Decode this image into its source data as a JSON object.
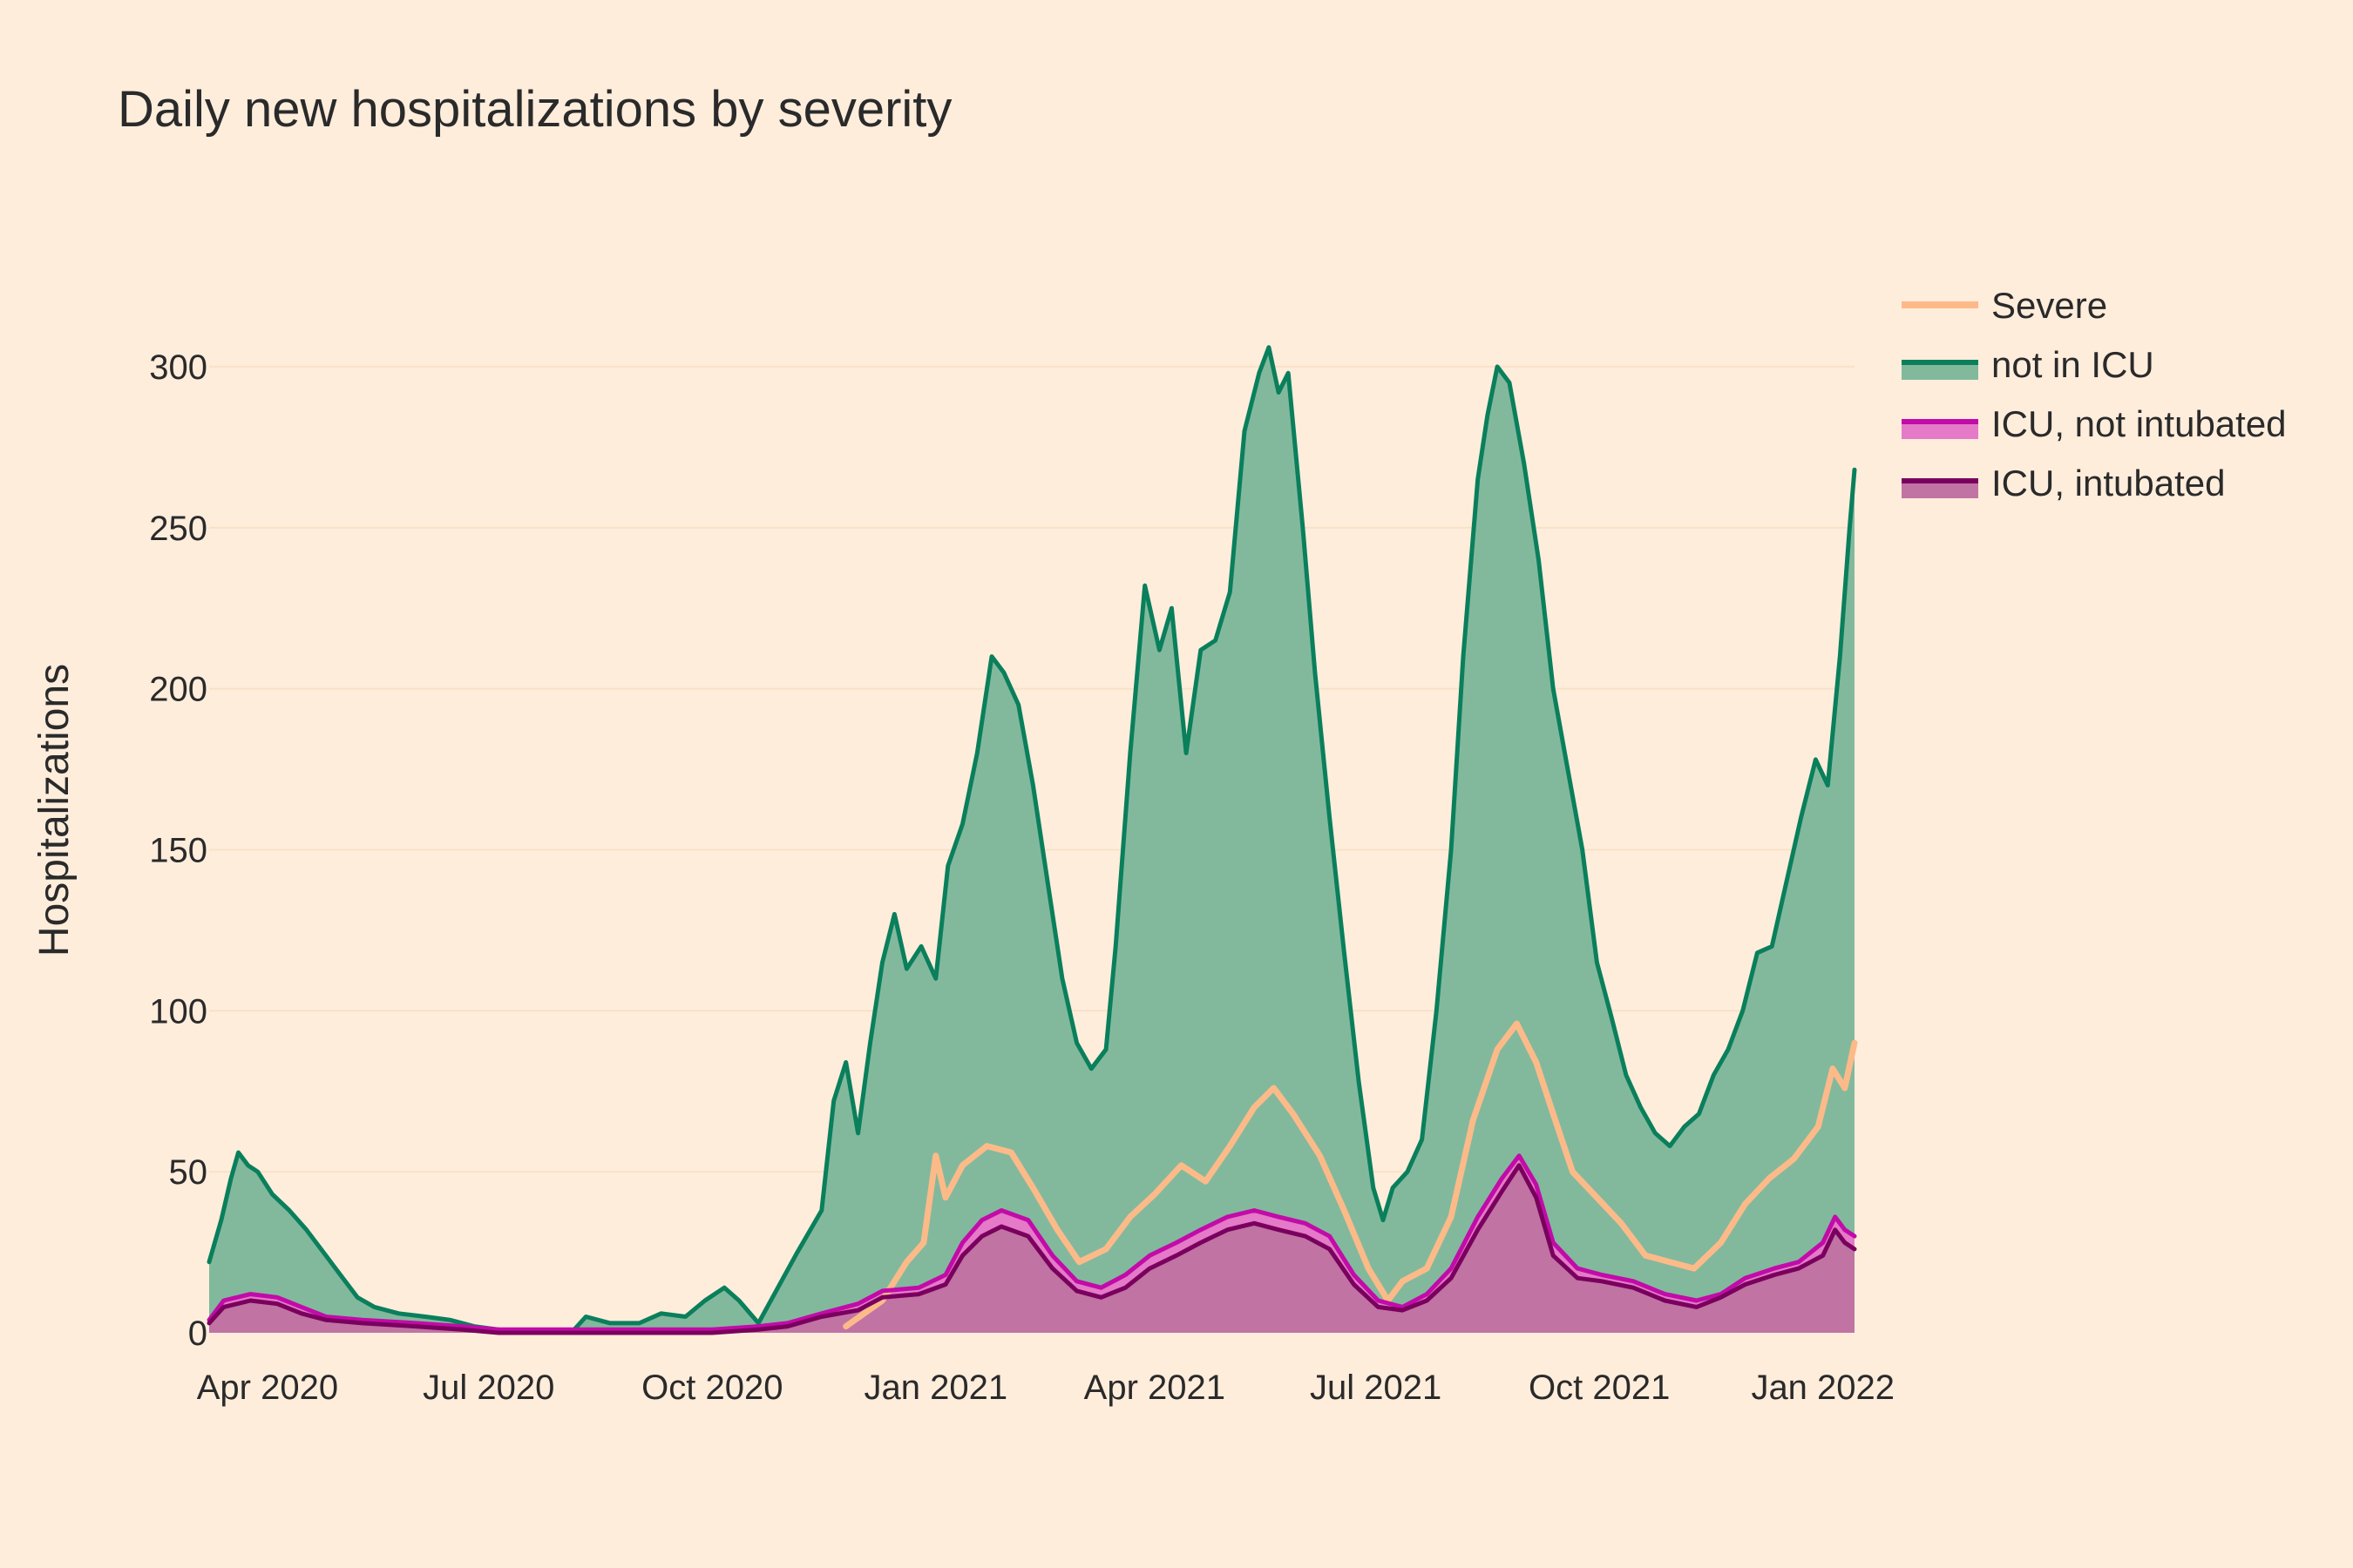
{
  "chart_data": {
    "type": "area",
    "title": "Daily new hospitalizations by severity",
    "xlabel": "",
    "ylabel": "Hospitalizations",
    "x_range": [
      "2020-03-08",
      "2022-01-14"
    ],
    "ylim": [
      0,
      330
    ],
    "y_ticks": [
      0,
      50,
      100,
      150,
      200,
      250,
      300
    ],
    "x_ticks": [
      {
        "date": "2020-04-01",
        "label": "Apr 2020"
      },
      {
        "date": "2020-07-01",
        "label": "Jul 2020"
      },
      {
        "date": "2020-10-01",
        "label": "Oct 2020"
      },
      {
        "date": "2021-01-01",
        "label": "Jan 2021"
      },
      {
        "date": "2021-04-01",
        "label": "Apr 2021"
      },
      {
        "date": "2021-07-01",
        "label": "Jul 2021"
      },
      {
        "date": "2021-10-01",
        "label": "Oct 2021"
      },
      {
        "date": "2022-01-01",
        "label": "Jan 2022"
      }
    ],
    "grid": true,
    "legend_position": "top-right",
    "colors": {
      "background": "#FFEDDC",
      "grid": "#F7E2C8",
      "severe": "#FDBA89",
      "not_in_icu_line": "#0A7F5C",
      "not_in_icu_fill": "#82B99D",
      "icu_not_intubated_line": "#C20BA8",
      "icu_not_intubated_fill": "#E47AC8",
      "icu_intubated_line": "#7A005E",
      "icu_intubated_fill": "#C173A4"
    },
    "series": [
      {
        "name": "Severe",
        "style": "line",
        "points": [
          [
            "2020-11-25",
            2
          ],
          [
            "2020-12-10",
            10
          ],
          [
            "2020-12-20",
            22
          ],
          [
            "2020-12-27",
            28
          ],
          [
            "2021-01-01",
            55
          ],
          [
            "2021-01-05",
            42
          ],
          [
            "2021-01-12",
            52
          ],
          [
            "2021-01-22",
            58
          ],
          [
            "2021-02-01",
            56
          ],
          [
            "2021-02-10",
            45
          ],
          [
            "2021-02-20",
            32
          ],
          [
            "2021-03-01",
            22
          ],
          [
            "2021-03-12",
            26
          ],
          [
            "2021-03-22",
            36
          ],
          [
            "2021-04-01",
            43
          ],
          [
            "2021-04-12",
            52
          ],
          [
            "2021-04-22",
            47
          ],
          [
            "2021-05-02",
            58
          ],
          [
            "2021-05-12",
            70
          ],
          [
            "2021-05-20",
            76
          ],
          [
            "2021-05-28",
            68
          ],
          [
            "2021-06-08",
            55
          ],
          [
            "2021-06-18",
            38
          ],
          [
            "2021-06-28",
            20
          ],
          [
            "2021-07-06",
            10
          ],
          [
            "2021-07-12",
            16
          ],
          [
            "2021-07-22",
            20
          ],
          [
            "2021-08-01",
            36
          ],
          [
            "2021-08-10",
            66
          ],
          [
            "2021-08-20",
            88
          ],
          [
            "2021-08-28",
            96
          ],
          [
            "2021-09-05",
            84
          ],
          [
            "2021-09-12",
            68
          ],
          [
            "2021-09-20",
            50
          ],
          [
            "2021-09-30",
            42
          ],
          [
            "2021-10-10",
            34
          ],
          [
            "2021-10-20",
            24
          ],
          [
            "2021-10-30",
            22
          ],
          [
            "2021-11-09",
            20
          ],
          [
            "2021-11-20",
            28
          ],
          [
            "2021-11-30",
            40
          ],
          [
            "2021-12-10",
            48
          ],
          [
            "2021-12-20",
            54
          ],
          [
            "2021-12-30",
            64
          ],
          [
            "2022-01-05",
            82
          ],
          [
            "2022-01-10",
            76
          ],
          [
            "2022-01-14",
            90
          ]
        ]
      },
      {
        "name": "not in ICU",
        "style": "area",
        "points": [
          [
            "2020-03-08",
            22
          ],
          [
            "2020-03-13",
            35
          ],
          [
            "2020-03-17",
            48
          ],
          [
            "2020-03-20",
            56
          ],
          [
            "2020-03-24",
            52
          ],
          [
            "2020-03-28",
            50
          ],
          [
            "2020-04-03",
            43
          ],
          [
            "2020-04-10",
            38
          ],
          [
            "2020-04-17",
            32
          ],
          [
            "2020-04-25",
            24
          ],
          [
            "2020-05-01",
            18
          ],
          [
            "2020-05-08",
            11
          ],
          [
            "2020-05-15",
            8
          ],
          [
            "2020-05-25",
            6
          ],
          [
            "2020-06-05",
            5
          ],
          [
            "2020-06-15",
            4
          ],
          [
            "2020-06-25",
            2
          ],
          [
            "2020-07-05",
            1
          ],
          [
            "2020-07-15",
            0
          ],
          [
            "2020-08-04",
            0
          ],
          [
            "2020-08-10",
            5
          ],
          [
            "2020-08-20",
            3
          ],
          [
            "2020-09-01",
            3
          ],
          [
            "2020-09-10",
            6
          ],
          [
            "2020-09-20",
            5
          ],
          [
            "2020-09-28",
            10
          ],
          [
            "2020-10-06",
            14
          ],
          [
            "2020-10-12",
            10
          ],
          [
            "2020-10-20",
            3
          ],
          [
            "2020-10-28",
            14
          ],
          [
            "2020-11-05",
            25
          ],
          [
            "2020-11-15",
            38
          ],
          [
            "2020-11-20",
            72
          ],
          [
            "2020-11-25",
            84
          ],
          [
            "2020-11-30",
            62
          ],
          [
            "2020-12-05",
            90
          ],
          [
            "2020-12-10",
            115
          ],
          [
            "2020-12-15",
            130
          ],
          [
            "2020-12-20",
            113
          ],
          [
            "2020-12-26",
            120
          ],
          [
            "2021-01-01",
            110
          ],
          [
            "2021-01-06",
            145
          ],
          [
            "2021-01-12",
            158
          ],
          [
            "2021-01-18",
            180
          ],
          [
            "2021-01-24",
            210
          ],
          [
            "2021-01-29",
            205
          ],
          [
            "2021-02-04",
            195
          ],
          [
            "2021-02-10",
            170
          ],
          [
            "2021-02-16",
            140
          ],
          [
            "2021-02-22",
            110
          ],
          [
            "2021-02-28",
            90
          ],
          [
            "2021-03-06",
            82
          ],
          [
            "2021-03-12",
            88
          ],
          [
            "2021-03-16",
            120
          ],
          [
            "2021-03-22",
            180
          ],
          [
            "2021-03-28",
            232
          ],
          [
            "2021-04-03",
            212
          ],
          [
            "2021-04-08",
            225
          ],
          [
            "2021-04-14",
            180
          ],
          [
            "2021-04-20",
            212
          ],
          [
            "2021-04-26",
            215
          ],
          [
            "2021-05-02",
            230
          ],
          [
            "2021-05-08",
            280
          ],
          [
            "2021-05-14",
            298
          ],
          [
            "2021-05-18",
            306
          ],
          [
            "2021-05-22",
            292
          ],
          [
            "2021-05-26",
            298
          ],
          [
            "2021-06-01",
            250
          ],
          [
            "2021-06-06",
            205
          ],
          [
            "2021-06-12",
            160
          ],
          [
            "2021-06-18",
            118
          ],
          [
            "2021-06-24",
            78
          ],
          [
            "2021-06-30",
            45
          ],
          [
            "2021-07-04",
            35
          ],
          [
            "2021-07-08",
            45
          ],
          [
            "2021-07-14",
            50
          ],
          [
            "2021-07-20",
            60
          ],
          [
            "2021-07-26",
            100
          ],
          [
            "2021-08-01",
            150
          ],
          [
            "2021-08-06",
            210
          ],
          [
            "2021-08-12",
            265
          ],
          [
            "2021-08-16",
            285
          ],
          [
            "2021-08-20",
            300
          ],
          [
            "2021-08-25",
            295
          ],
          [
            "2021-08-31",
            270
          ],
          [
            "2021-09-06",
            240
          ],
          [
            "2021-09-12",
            200
          ],
          [
            "2021-09-18",
            175
          ],
          [
            "2021-09-24",
            150
          ],
          [
            "2021-09-30",
            115
          ],
          [
            "2021-10-06",
            98
          ],
          [
            "2021-10-12",
            80
          ],
          [
            "2021-10-18",
            70
          ],
          [
            "2021-10-24",
            62
          ],
          [
            "2021-10-30",
            58
          ],
          [
            "2021-11-05",
            64
          ],
          [
            "2021-11-11",
            68
          ],
          [
            "2021-11-17",
            80
          ],
          [
            "2021-11-23",
            88
          ],
          [
            "2021-11-29",
            100
          ],
          [
            "2021-12-05",
            118
          ],
          [
            "2021-12-11",
            120
          ],
          [
            "2021-12-17",
            140
          ],
          [
            "2021-12-23",
            160
          ],
          [
            "2021-12-29",
            178
          ],
          [
            "2022-01-03",
            170
          ],
          [
            "2022-01-08",
            210
          ],
          [
            "2022-01-12",
            250
          ],
          [
            "2022-01-14",
            268
          ]
        ]
      },
      {
        "name": "ICU, not intubated",
        "style": "area",
        "points": [
          [
            "2020-03-08",
            4
          ],
          [
            "2020-03-14",
            10
          ],
          [
            "2020-03-25",
            12
          ],
          [
            "2020-04-05",
            11
          ],
          [
            "2020-04-15",
            8
          ],
          [
            "2020-04-25",
            5
          ],
          [
            "2020-05-10",
            4
          ],
          [
            "2020-06-01",
            3
          ],
          [
            "2020-06-20",
            2
          ],
          [
            "2020-07-05",
            1
          ],
          [
            "2020-08-01",
            1
          ],
          [
            "2020-09-01",
            1
          ],
          [
            "2020-10-01",
            1
          ],
          [
            "2020-10-20",
            2
          ],
          [
            "2020-11-01",
            3
          ],
          [
            "2020-11-15",
            6
          ],
          [
            "2020-11-30",
            9
          ],
          [
            "2020-12-10",
            13
          ],
          [
            "2020-12-25",
            14
          ],
          [
            "2021-01-05",
            18
          ],
          [
            "2021-01-12",
            28
          ],
          [
            "2021-01-20",
            35
          ],
          [
            "2021-01-28",
            38
          ],
          [
            "2021-02-08",
            35
          ],
          [
            "2021-02-18",
            24
          ],
          [
            "2021-02-28",
            16
          ],
          [
            "2021-03-10",
            14
          ],
          [
            "2021-03-20",
            18
          ],
          [
            "2021-03-30",
            24
          ],
          [
            "2021-04-10",
            28
          ],
          [
            "2021-04-20",
            32
          ],
          [
            "2021-05-01",
            36
          ],
          [
            "2021-05-12",
            38
          ],
          [
            "2021-05-22",
            36
          ],
          [
            "2021-06-02",
            34
          ],
          [
            "2021-06-12",
            30
          ],
          [
            "2021-06-22",
            18
          ],
          [
            "2021-07-02",
            10
          ],
          [
            "2021-07-12",
            8
          ],
          [
            "2021-07-22",
            12
          ],
          [
            "2021-08-01",
            20
          ],
          [
            "2021-08-12",
            36
          ],
          [
            "2021-08-22",
            48
          ],
          [
            "2021-08-29",
            55
          ],
          [
            "2021-09-05",
            46
          ],
          [
            "2021-09-12",
            28
          ],
          [
            "2021-09-22",
            20
          ],
          [
            "2021-10-02",
            18
          ],
          [
            "2021-10-15",
            16
          ],
          [
            "2021-10-28",
            12
          ],
          [
            "2021-11-10",
            10
          ],
          [
            "2021-11-20",
            12
          ],
          [
            "2021-11-30",
            17
          ],
          [
            "2021-12-12",
            20
          ],
          [
            "2021-12-22",
            22
          ],
          [
            "2022-01-01",
            28
          ],
          [
            "2022-01-06",
            36
          ],
          [
            "2022-01-10",
            32
          ],
          [
            "2022-01-14",
            30
          ]
        ]
      },
      {
        "name": "ICU, intubated",
        "style": "area",
        "points": [
          [
            "2020-03-08",
            3
          ],
          [
            "2020-03-14",
            8
          ],
          [
            "2020-03-25",
            10
          ],
          [
            "2020-04-05",
            9
          ],
          [
            "2020-04-15",
            6
          ],
          [
            "2020-04-25",
            4
          ],
          [
            "2020-05-10",
            3
          ],
          [
            "2020-06-01",
            2
          ],
          [
            "2020-06-20",
            1
          ],
          [
            "2020-07-05",
            0
          ],
          [
            "2020-08-01",
            0
          ],
          [
            "2020-09-01",
            0
          ],
          [
            "2020-10-01",
            0
          ],
          [
            "2020-10-20",
            1
          ],
          [
            "2020-11-01",
            2
          ],
          [
            "2020-11-15",
            5
          ],
          [
            "2020-11-30",
            7
          ],
          [
            "2020-12-10",
            11
          ],
          [
            "2020-12-25",
            12
          ],
          [
            "2021-01-05",
            15
          ],
          [
            "2021-01-12",
            24
          ],
          [
            "2021-01-20",
            30
          ],
          [
            "2021-01-28",
            33
          ],
          [
            "2021-02-08",
            30
          ],
          [
            "2021-02-18",
            20
          ],
          [
            "2021-02-28",
            13
          ],
          [
            "2021-03-10",
            11
          ],
          [
            "2021-03-20",
            14
          ],
          [
            "2021-03-30",
            20
          ],
          [
            "2021-04-10",
            24
          ],
          [
            "2021-04-20",
            28
          ],
          [
            "2021-05-01",
            32
          ],
          [
            "2021-05-12",
            34
          ],
          [
            "2021-05-22",
            32
          ],
          [
            "2021-06-02",
            30
          ],
          [
            "2021-06-12",
            26
          ],
          [
            "2021-06-22",
            15
          ],
          [
            "2021-07-02",
            8
          ],
          [
            "2021-07-12",
            7
          ],
          [
            "2021-07-22",
            10
          ],
          [
            "2021-08-01",
            17
          ],
          [
            "2021-08-12",
            32
          ],
          [
            "2021-08-22",
            44
          ],
          [
            "2021-08-29",
            52
          ],
          [
            "2021-09-05",
            42
          ],
          [
            "2021-09-12",
            24
          ],
          [
            "2021-09-22",
            17
          ],
          [
            "2021-10-02",
            16
          ],
          [
            "2021-10-15",
            14
          ],
          [
            "2021-10-28",
            10
          ],
          [
            "2021-11-10",
            8
          ],
          [
            "2021-11-20",
            11
          ],
          [
            "2021-11-30",
            15
          ],
          [
            "2021-12-12",
            18
          ],
          [
            "2021-12-22",
            20
          ],
          [
            "2022-01-01",
            24
          ],
          [
            "2022-01-06",
            32
          ],
          [
            "2022-01-10",
            28
          ],
          [
            "2022-01-14",
            26
          ]
        ]
      }
    ]
  }
}
